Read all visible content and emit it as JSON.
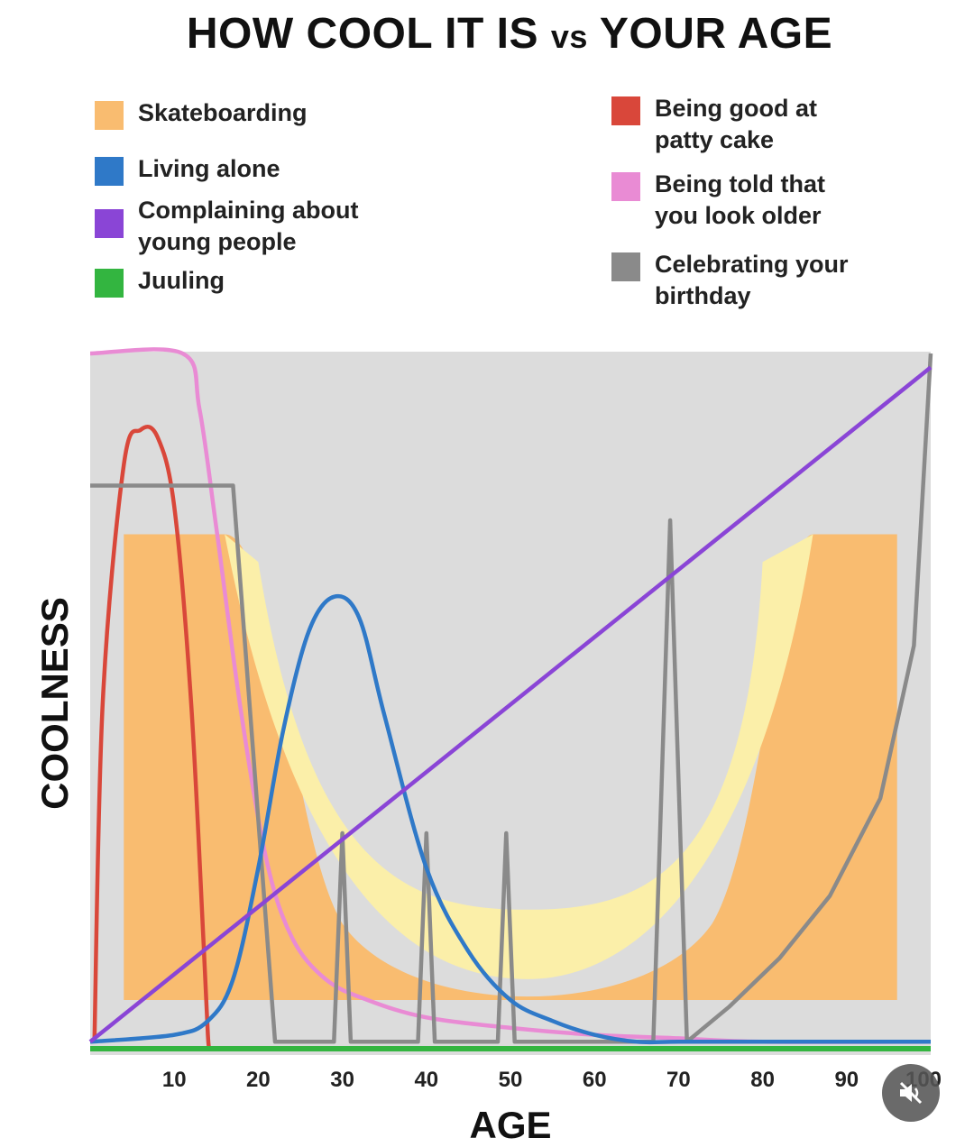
{
  "chart_data": {
    "type": "line",
    "title_main": "HOW COOL IT IS",
    "title_vs": "vs",
    "title_end": "YOUR AGE",
    "xlabel": "AGE",
    "ylabel": "COOLNESS",
    "x_ticks": [
      "10",
      "20",
      "30",
      "40",
      "50",
      "60",
      "70",
      "80",
      "90",
      "100"
    ],
    "xlim": [
      0,
      100
    ],
    "ylim": [
      0,
      100
    ],
    "grid": false,
    "legend": "top",
    "series": [
      {
        "name": "Skateboarding",
        "color": "#f9bc70",
        "x": [
          4,
          4,
          16,
          20,
          26,
          34,
          44,
          52,
          62,
          72,
          78,
          86,
          96,
          96
        ],
        "y": [
          7,
          74,
          74,
          70,
          35,
          14,
          8,
          7,
          8,
          14,
          35,
          74,
          74,
          7
        ]
      },
      {
        "name": "Being good at patty cake",
        "color": "#d9473a",
        "x": [
          0.5,
          1.5,
          4,
          6,
          8,
          10,
          12,
          13.5,
          14,
          14.2
        ],
        "y": [
          1,
          50,
          84,
          89,
          88,
          78,
          50,
          15,
          2,
          0
        ]
      },
      {
        "name": "Living alone",
        "color": "#2f79c8",
        "x": [
          0,
          10,
          14,
          17,
          20,
          23,
          26,
          29,
          32,
          35,
          40,
          45,
          50,
          55,
          60,
          65,
          70,
          80,
          100
        ],
        "y": [
          1,
          2,
          4,
          10,
          26,
          46,
          60,
          65,
          62,
          48,
          26,
          14,
          7,
          4,
          2,
          1,
          1,
          1,
          1
        ]
      },
      {
        "name": "Being told that you look older",
        "color": "#e98bd4",
        "x": [
          0,
          11,
          13,
          15,
          18,
          21,
          24,
          28,
          33,
          40,
          50,
          60,
          70,
          80,
          100
        ],
        "y": [
          100,
          100,
          92,
          75,
          48,
          27,
          16,
          10,
          7,
          4.5,
          3,
          2,
          1.5,
          1,
          1
        ]
      },
      {
        "name": "Celebrating your birthday",
        "color": "#8a8a8a",
        "x": [
          0,
          17,
          22,
          23,
          29,
          30,
          31,
          39,
          40,
          41,
          48.5,
          49.5,
          50.5,
          67,
          69,
          71,
          76,
          82,
          88,
          94,
          98,
          100
        ],
        "y": [
          81,
          81,
          1,
          1,
          1,
          31,
          1,
          1,
          31,
          1,
          1,
          31,
          1,
          1,
          76,
          1,
          6,
          13,
          22,
          36,
          58,
          100
        ]
      },
      {
        "name": "Complaining about young people",
        "color": "#8a45d6",
        "x": [
          0,
          100
        ],
        "y": [
          1,
          98
        ]
      },
      {
        "name": "Juuling",
        "color": "#33b540",
        "x": [
          0,
          100
        ],
        "y": [
          0,
          0
        ]
      }
    ]
  },
  "legend_left": [
    {
      "name": "Skateboarding",
      "color": "#f9bc70"
    },
    {
      "name": "Living alone",
      "color": "#2f79c8"
    },
    {
      "name": "Complaining about\nyoung people",
      "color": "#8a45d6"
    },
    {
      "name": "Juuling",
      "color": "#33b540"
    }
  ],
  "legend_right": [
    {
      "name": "Being good at\npatty cake",
      "color": "#d9473a"
    },
    {
      "name": "Being told that\nyou look older",
      "color": "#e98bd4"
    },
    {
      "name": "Celebrating your\nbirthday",
      "color": "#8a8a8a"
    }
  ],
  "skate_zone_color": "#fbefa9",
  "plot_background": "#dcdcdc",
  "mute_icon": "speaker-muted-icon"
}
